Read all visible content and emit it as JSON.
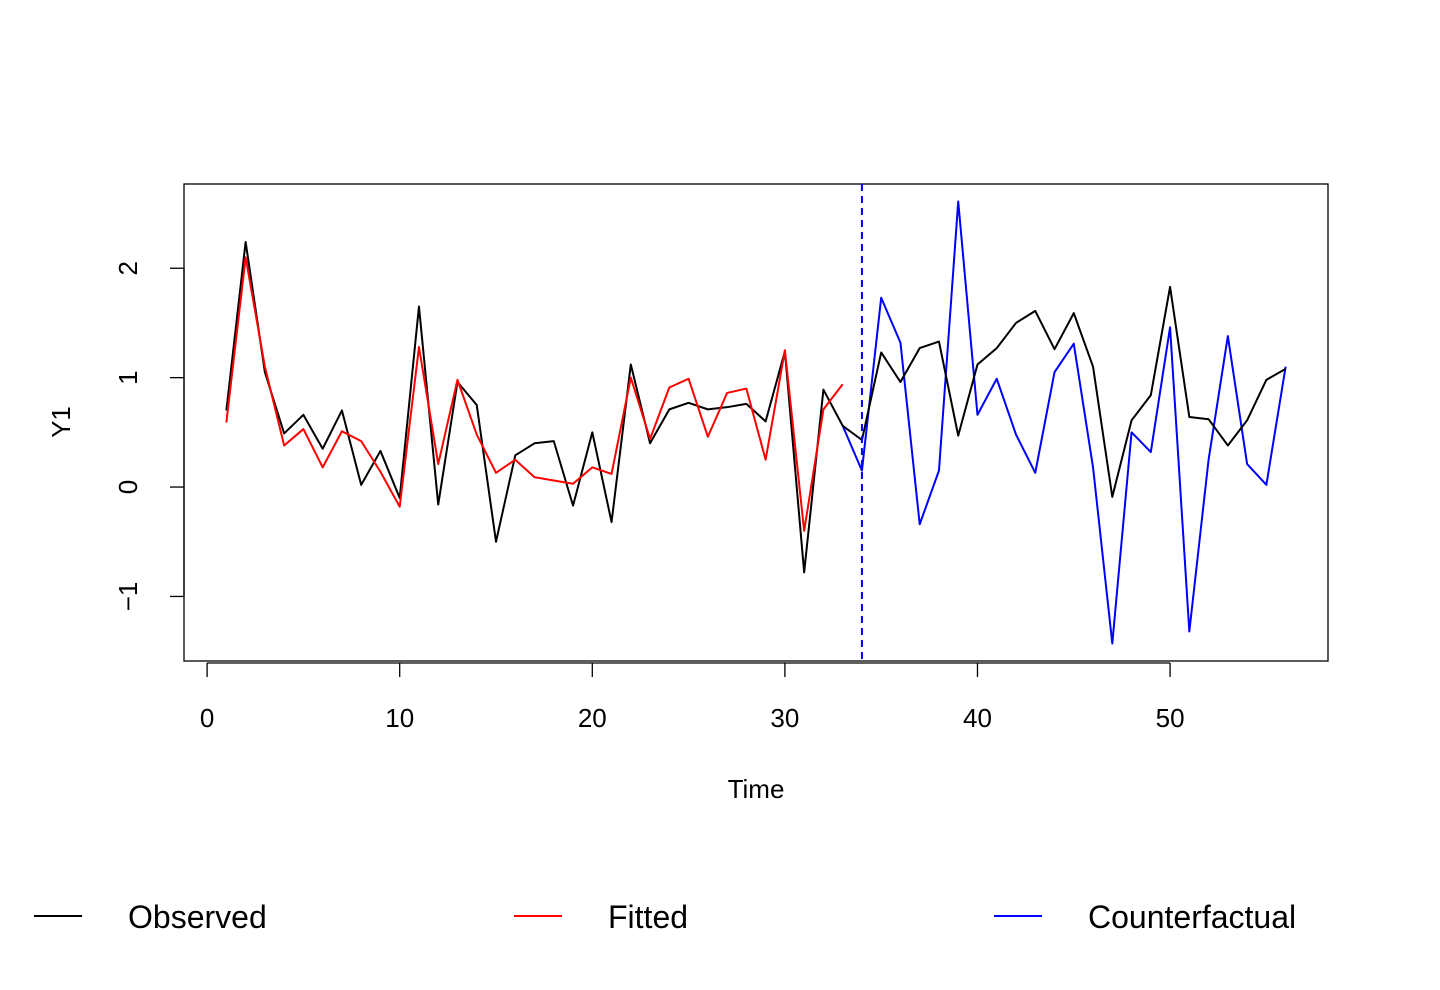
{
  "chart_data": {
    "type": "line",
    "title": "",
    "xlabel": "Time",
    "ylabel": "Y1",
    "xlim": [
      -1.2,
      58.2
    ],
    "ylim": [
      -1.59,
      2.77
    ],
    "x_ticks": [
      0,
      10,
      20,
      30,
      40,
      50
    ],
    "y_ticks": [
      -1,
      0,
      1,
      2
    ],
    "x_tick_labels": [
      "0",
      "10",
      "20",
      "30",
      "40",
      "50"
    ],
    "y_tick_labels": [
      "−1",
      "0",
      "1",
      "2"
    ],
    "intervention_x": 34,
    "grid": false,
    "legend_position": "bottom",
    "series": [
      {
        "name": "Observed",
        "color": "#000000",
        "x": [
          1,
          2,
          3,
          4,
          5,
          6,
          7,
          8,
          9,
          10,
          11,
          12,
          13,
          14,
          15,
          16,
          17,
          18,
          19,
          20,
          21,
          22,
          23,
          24,
          25,
          26,
          27,
          28,
          29,
          30,
          31,
          32,
          33,
          34,
          35,
          36,
          37,
          38,
          39,
          40,
          41,
          42,
          43,
          44,
          45,
          46,
          47,
          48,
          49,
          50,
          51,
          52,
          53,
          54,
          55,
          56
        ],
        "values": [
          0.7,
          2.24,
          1.05,
          0.49,
          0.66,
          0.35,
          0.7,
          0.02,
          0.33,
          -0.1,
          1.65,
          -0.16,
          0.96,
          0.75,
          -0.5,
          0.29,
          0.4,
          0.42,
          -0.17,
          0.5,
          -0.32,
          1.12,
          0.4,
          0.71,
          0.77,
          0.71,
          0.73,
          0.76,
          0.6,
          1.24,
          -0.78,
          0.89,
          0.56,
          0.43,
          1.23,
          0.96,
          1.27,
          1.33,
          0.47,
          1.12,
          1.27,
          1.5,
          1.61,
          1.26,
          1.59,
          1.1,
          -0.09,
          0.61,
          0.84,
          1.83,
          0.64,
          0.62,
          0.38,
          0.61,
          0.98,
          1.08
        ]
      },
      {
        "name": "Fitted",
        "color": "#ff0000",
        "x": [
          1,
          2,
          3,
          4,
          5,
          6,
          7,
          8,
          9,
          10,
          11,
          12,
          13,
          14,
          15,
          16,
          17,
          18,
          19,
          20,
          21,
          22,
          23,
          24,
          25,
          26,
          27,
          28,
          29,
          30,
          31,
          32,
          33
        ],
        "values": [
          0.59,
          2.1,
          1.1,
          0.38,
          0.53,
          0.18,
          0.51,
          0.42,
          0.14,
          -0.18,
          1.28,
          0.21,
          0.98,
          0.48,
          0.13,
          0.25,
          0.09,
          0.06,
          0.03,
          0.18,
          0.12,
          1.0,
          0.44,
          0.91,
          0.99,
          0.46,
          0.86,
          0.9,
          0.25,
          1.25,
          -0.4,
          0.71,
          0.94
        ]
      },
      {
        "name": "Counterfactual",
        "color": "#0000ff",
        "x": [
          33,
          34,
          35,
          36,
          37,
          38,
          39,
          40,
          41,
          42,
          43,
          44,
          45,
          46,
          47,
          48,
          49,
          50,
          51,
          52,
          53,
          54,
          55,
          56
        ],
        "values": [
          0.56,
          0.15,
          1.73,
          1.32,
          -0.34,
          0.15,
          2.61,
          0.66,
          0.99,
          0.48,
          0.13,
          1.05,
          1.31,
          0.18,
          -1.43,
          0.5,
          0.32,
          1.46,
          -1.32,
          0.25,
          1.38,
          0.21,
          0.02,
          1.1
        ]
      }
    ]
  }
}
